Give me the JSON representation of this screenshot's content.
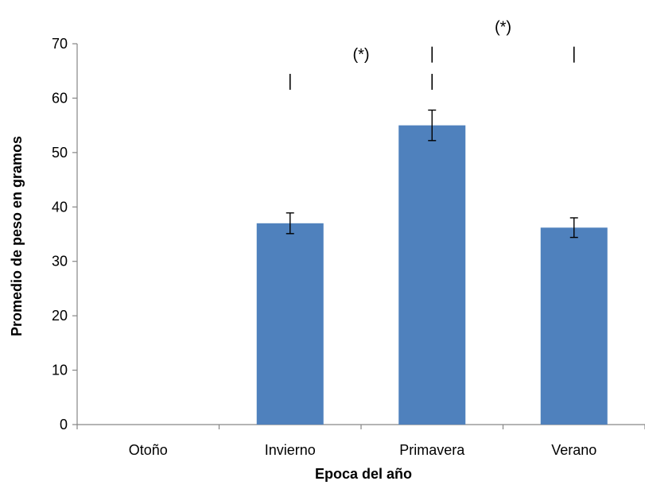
{
  "chart_data": {
    "type": "bar",
    "categories": [
      "Otoño",
      "Invierno",
      "Primavera",
      "Verano"
    ],
    "values": [
      0,
      37,
      55,
      36.2
    ],
    "error": [
      0,
      1.9,
      2.8,
      1.8
    ],
    "xlabel": "Epoca del año",
    "ylabel": "Promedio de peso en gramos",
    "ylim": [
      0,
      70
    ],
    "yticks": [
      0,
      10,
      20,
      30,
      40,
      50,
      60,
      70
    ],
    "grid": false,
    "bar_color": "#4F81BD",
    "significance": [
      {
        "from": "Invierno",
        "to": "Primavera",
        "y": 63,
        "label": "(*)"
      },
      {
        "from": "Primavera",
        "to": "Verano",
        "y": 68,
        "label": "(*)"
      }
    ]
  }
}
